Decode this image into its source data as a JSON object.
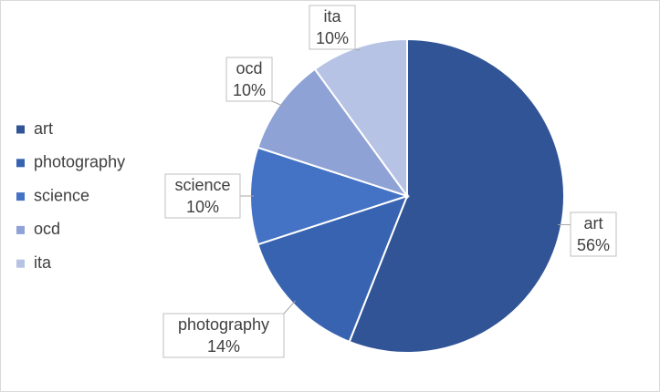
{
  "chart_data": {
    "type": "pie",
    "categories": [
      "art",
      "photography",
      "science",
      "ocd",
      "ita"
    ],
    "values": [
      56,
      14,
      10,
      10,
      10
    ],
    "value_labels": [
      "56%",
      "14%",
      "10%",
      "10%",
      "10%"
    ],
    "colors": [
      "#305496",
      "#3763b0",
      "#4472c4",
      "#8ea2d6",
      "#b7c3e4"
    ],
    "legend": "left"
  }
}
